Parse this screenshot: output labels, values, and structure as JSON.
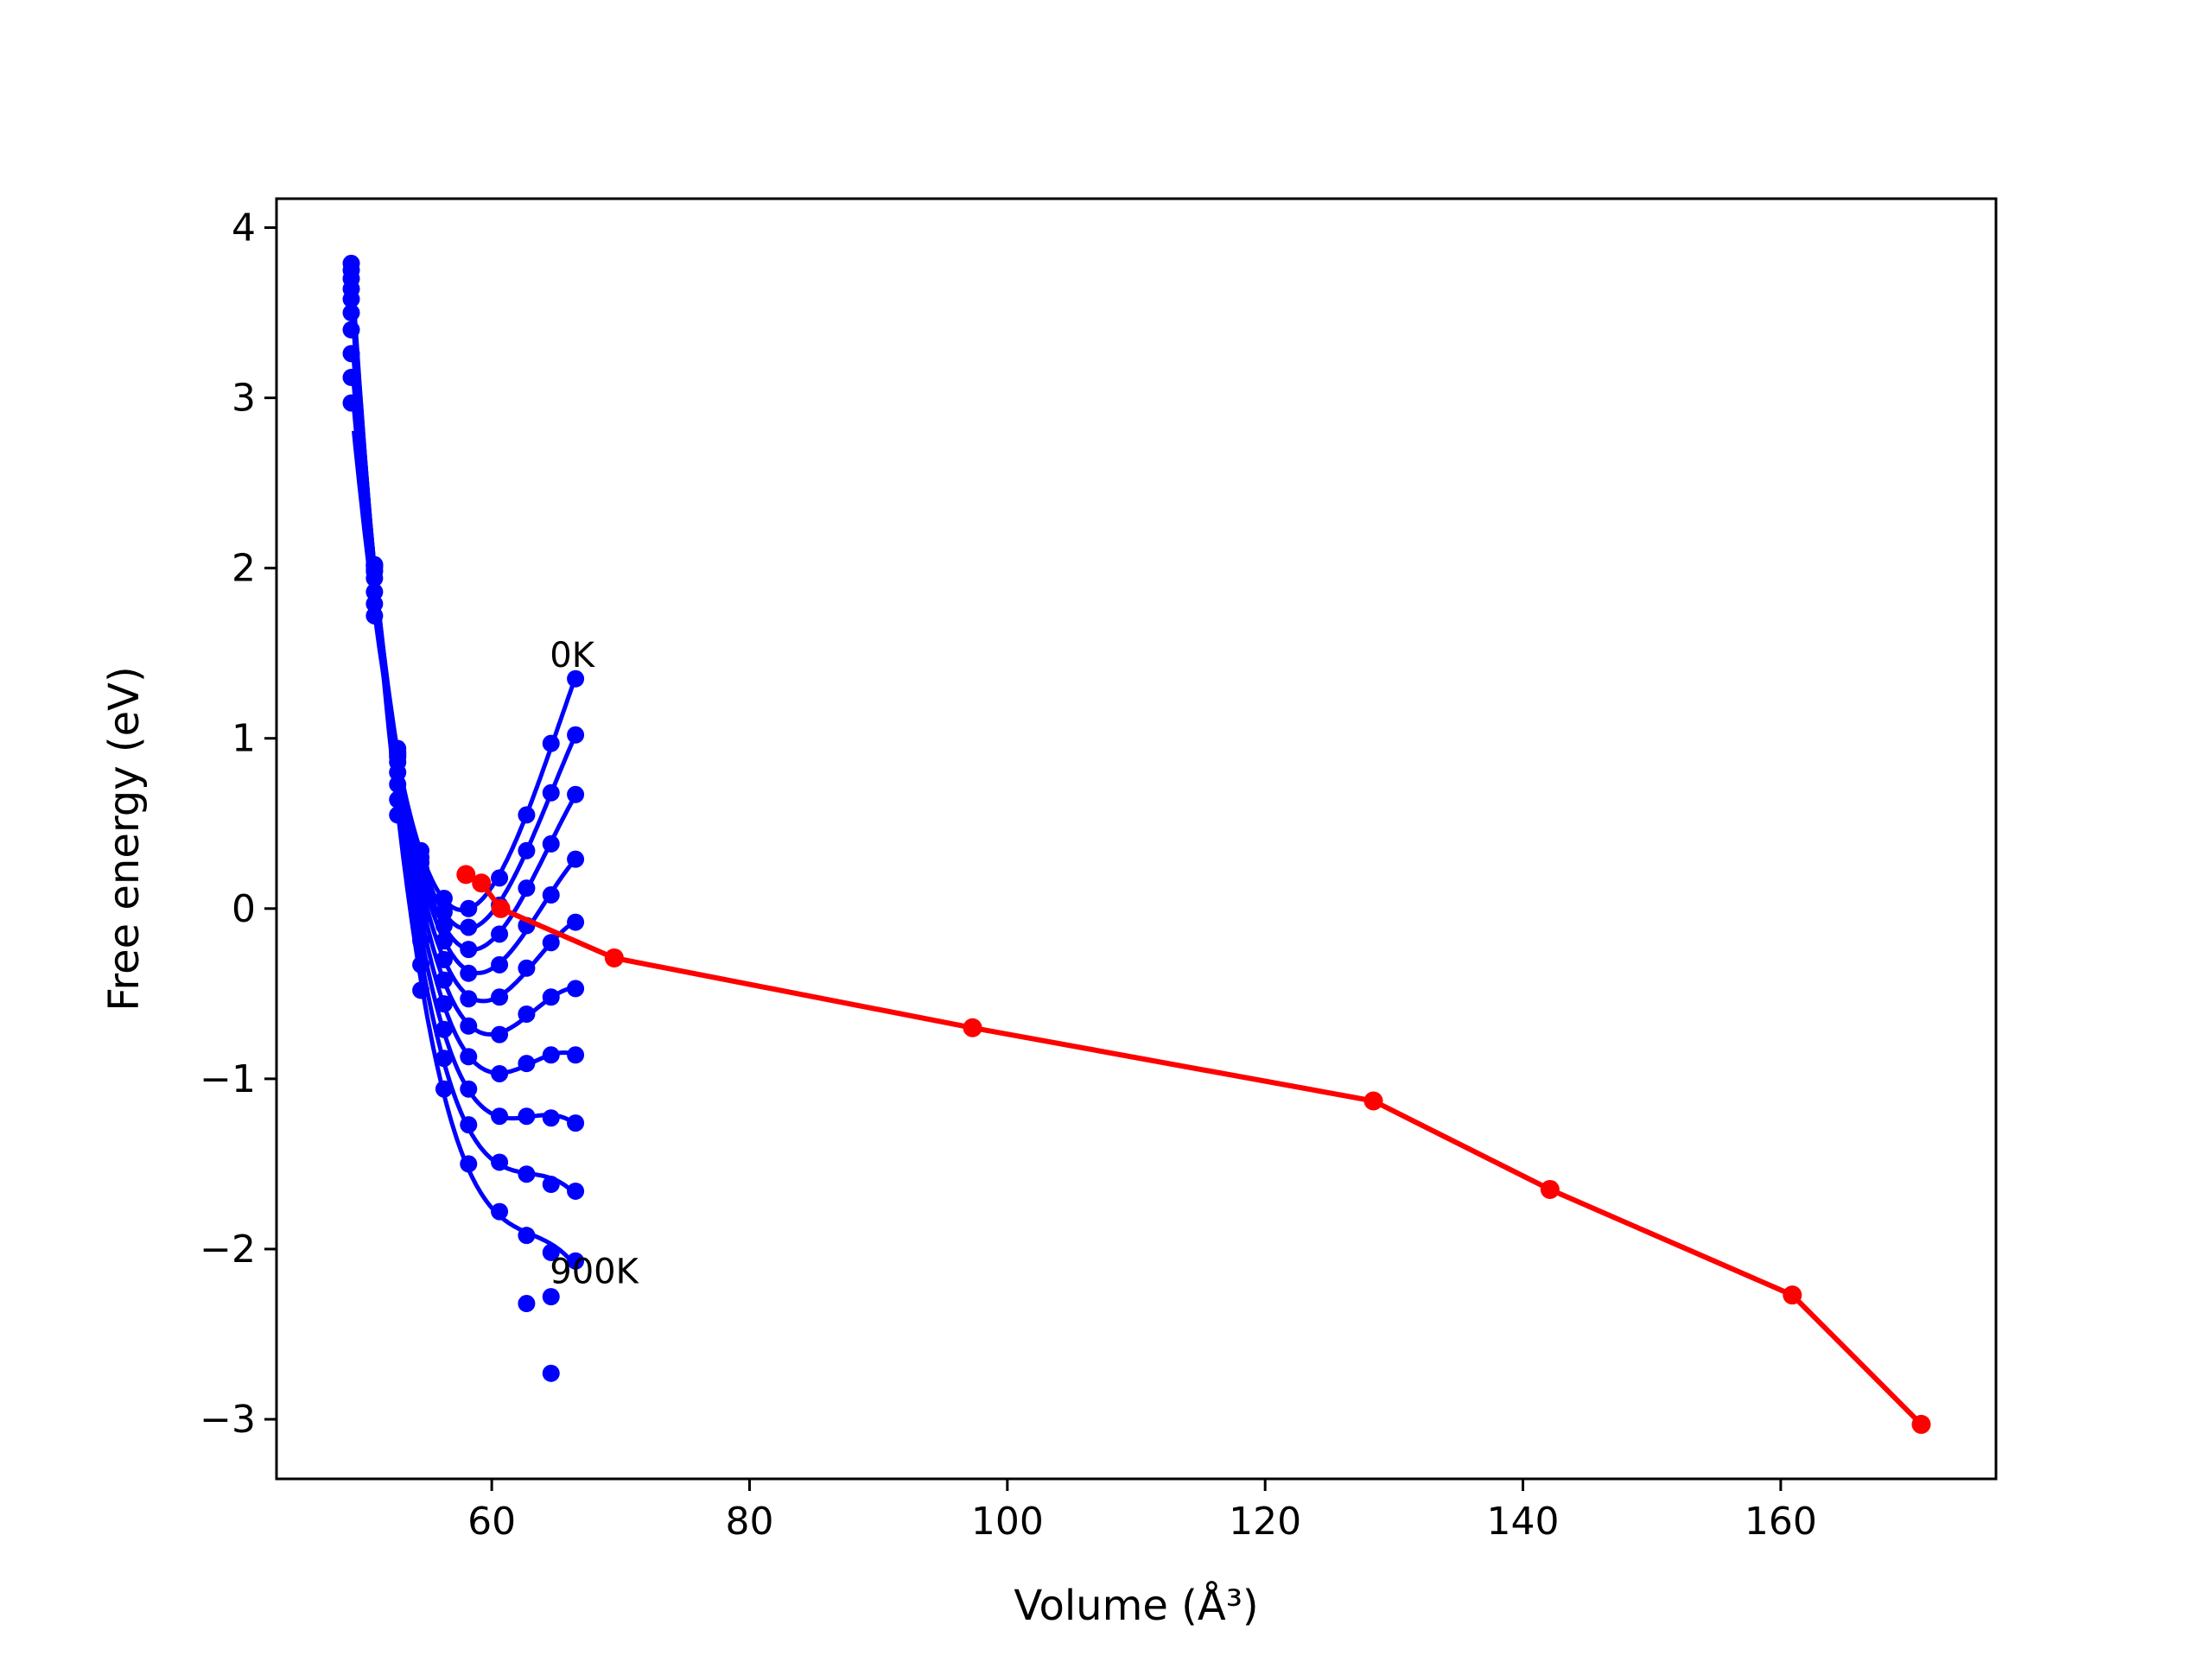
{
  "chart_data": {
    "type": "line",
    "title": "",
    "xlabel": "Volume (Å³)",
    "ylabel": "Free energy (eV)",
    "xlim": [
      43.3,
      176.7
    ],
    "ylim": [
      -3.35,
      4.17
    ],
    "xticks": [
      60,
      80,
      100,
      120,
      140,
      160
    ],
    "yticks": [
      -3,
      -2,
      -1,
      0,
      1,
      2,
      3,
      4
    ],
    "xtick_labels": [
      "60",
      "80",
      "100",
      "120",
      140,
      160
    ],
    "ytick_labels": [
      "−3",
      "−2",
      "−1",
      "0",
      "1",
      "2",
      "3",
      "4"
    ],
    "grid": false,
    "legend": "none",
    "annotations": [
      {
        "text": "0K",
        "x": 64.5,
        "y": 1.42
      },
      {
        "text": "900K",
        "x": 64.5,
        "y": -2.2
      }
    ],
    "volumes": [
      49.1,
      50.9,
      52.7,
      54.5,
      56.3,
      58.2,
      60.6,
      62.7,
      64.6,
      66.5
    ],
    "blue_color": "#0000ff",
    "red_color": "#ff0000",
    "series": [
      {
        "name": "",
        "values": [
          2.97,
          1.72,
          0.89,
          0.34,
          0.06,
          0.0,
          0.18,
          0.55,
          0.97,
          1.35
        ]
      },
      {
        "name": "",
        "values": [
          3.12,
          1.79,
          0.9,
          0.3,
          -0.02,
          -0.11,
          0.02,
          0.34,
          0.68,
          1.02
        ]
      },
      {
        "name": "",
        "values": [
          3.26,
          1.86,
          0.92,
          0.27,
          -0.1,
          -0.24,
          -0.15,
          0.12,
          0.38,
          0.67
        ]
      },
      {
        "name": "",
        "values": [
          3.4,
          1.94,
          0.94,
          0.23,
          -0.19,
          -0.38,
          -0.33,
          -0.1,
          0.08,
          0.29
        ]
      },
      {
        "name": "",
        "values": [
          3.5,
          1.98,
          0.91,
          0.15,
          -0.3,
          -0.53,
          -0.52,
          -0.35,
          -0.2,
          -0.08
        ]
      },
      {
        "name": "",
        "values": [
          3.58,
          2.01,
          0.86,
          0.05,
          -0.42,
          -0.69,
          -0.74,
          -0.62,
          -0.52,
          -0.47
        ]
      },
      {
        "name": "",
        "values": [
          3.64,
          2.02,
          0.8,
          -0.06,
          -0.56,
          -0.87,
          -0.97,
          -0.91,
          -0.86,
          -0.86
        ]
      },
      {
        "name": "",
        "values": [
          3.7,
          2.02,
          0.73,
          -0.19,
          -0.71,
          -1.06,
          -1.22,
          -1.22,
          -1.23,
          -1.26
        ]
      },
      {
        "name": "",
        "values": [
          3.75,
          2.01,
          0.64,
          -0.33,
          -0.88,
          -1.27,
          -1.49,
          -1.56,
          -1.62,
          -1.66
        ]
      },
      {
        "name": "",
        "values": [
          3.79,
          1.99,
          0.55,
          -0.48,
          -1.06,
          -1.5,
          -1.78,
          -1.92,
          -2.02,
          -2.07
        ]
      }
    ],
    "extra_points": [
      {
        "x": 62.7,
        "y": -2.32
      },
      {
        "x": 64.6,
        "y": -2.28
      },
      {
        "x": 64.6,
        "y": -2.73
      }
    ],
    "min_path": {
      "name": "",
      "x": [
        58.0,
        59.2,
        60.7,
        69.5,
        97.3,
        128.4,
        142.1,
        160.9,
        170.9
      ],
      "y": [
        0.2,
        0.15,
        0.0,
        -0.29,
        -0.7,
        -1.13,
        -1.65,
        -2.27,
        -3.03
      ]
    }
  }
}
